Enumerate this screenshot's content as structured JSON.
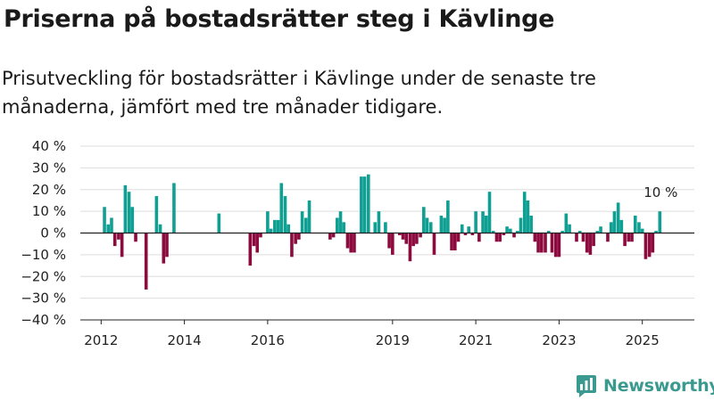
{
  "title": "Priserna på bostadsrätter steg i Kävlinge",
  "subtitle": "Prisutveckling för bostadsrätter i Kävlinge under de senaste tre månaderna, jämfört med tre månader tidigare.",
  "brand": "Newsworthy",
  "colors": {
    "positive": "#0fa093",
    "negative": "#8c0a3e",
    "grid": "#dddddd",
    "zero_line": "#222222",
    "brand": "#3a9a8f"
  },
  "chart_data": {
    "type": "bar",
    "ylim": [
      -40,
      40
    ],
    "yticks": [
      -40,
      -30,
      -20,
      -10,
      0,
      10,
      20,
      30,
      40
    ],
    "ytick_labels": [
      "−40 %",
      "−30 %",
      "−20 %",
      "−10 %",
      "0 %",
      "10 %",
      "20 %",
      "30 %",
      "40 %"
    ],
    "xticks": [
      2012,
      2014,
      2016,
      2019,
      2021,
      2023,
      2025
    ],
    "xtick_labels": [
      "2012",
      "2014",
      "2016",
      "2019",
      "2021",
      "2023",
      "2025"
    ],
    "xlim": [
      2011.5,
      2026.25
    ],
    "grid": true,
    "annotation": {
      "text": "10 %",
      "x": 2025.42,
      "y": 10
    },
    "points": [
      {
        "x": 2012.08,
        "y": 12
      },
      {
        "x": 2012.17,
        "y": 4
      },
      {
        "x": 2012.25,
        "y": 7
      },
      {
        "x": 2012.33,
        "y": -6
      },
      {
        "x": 2012.42,
        "y": -3
      },
      {
        "x": 2012.5,
        "y": -11
      },
      {
        "x": 2012.58,
        "y": 22
      },
      {
        "x": 2012.67,
        "y": 19
      },
      {
        "x": 2012.75,
        "y": 12
      },
      {
        "x": 2012.83,
        "y": -4
      },
      {
        "x": 2013.08,
        "y": -26
      },
      {
        "x": 2013.33,
        "y": 17
      },
      {
        "x": 2013.42,
        "y": 4
      },
      {
        "x": 2013.5,
        "y": -14
      },
      {
        "x": 2013.58,
        "y": -11
      },
      {
        "x": 2013.75,
        "y": 23
      },
      {
        "x": 2014.83,
        "y": 9
      },
      {
        "x": 2015.58,
        "y": -15
      },
      {
        "x": 2015.67,
        "y": -6
      },
      {
        "x": 2015.75,
        "y": -9
      },
      {
        "x": 2015.83,
        "y": -2
      },
      {
        "x": 2016.0,
        "y": 10
      },
      {
        "x": 2016.08,
        "y": 2
      },
      {
        "x": 2016.17,
        "y": 6
      },
      {
        "x": 2016.25,
        "y": 6
      },
      {
        "x": 2016.33,
        "y": 23
      },
      {
        "x": 2016.42,
        "y": 17
      },
      {
        "x": 2016.5,
        "y": 4
      },
      {
        "x": 2016.58,
        "y": -11
      },
      {
        "x": 2016.67,
        "y": -5
      },
      {
        "x": 2016.75,
        "y": -3
      },
      {
        "x": 2016.83,
        "y": 10
      },
      {
        "x": 2016.92,
        "y": 7
      },
      {
        "x": 2017.0,
        "y": 15
      },
      {
        "x": 2017.5,
        "y": -3
      },
      {
        "x": 2017.58,
        "y": -2
      },
      {
        "x": 2017.67,
        "y": 7
      },
      {
        "x": 2017.75,
        "y": 10
      },
      {
        "x": 2017.83,
        "y": 5
      },
      {
        "x": 2017.92,
        "y": -7
      },
      {
        "x": 2018.0,
        "y": -9
      },
      {
        "x": 2018.08,
        "y": -9
      },
      {
        "x": 2018.25,
        "y": 26
      },
      {
        "x": 2018.33,
        "y": 26
      },
      {
        "x": 2018.42,
        "y": 27
      },
      {
        "x": 2018.58,
        "y": 5
      },
      {
        "x": 2018.67,
        "y": 10
      },
      {
        "x": 2018.83,
        "y": 5
      },
      {
        "x": 2018.92,
        "y": -7
      },
      {
        "x": 2019.0,
        "y": -10
      },
      {
        "x": 2019.17,
        "y": -1
      },
      {
        "x": 2019.25,
        "y": -3
      },
      {
        "x": 2019.33,
        "y": -5
      },
      {
        "x": 2019.42,
        "y": -13
      },
      {
        "x": 2019.5,
        "y": -6
      },
      {
        "x": 2019.58,
        "y": -5
      },
      {
        "x": 2019.67,
        "y": -2
      },
      {
        "x": 2019.75,
        "y": 12
      },
      {
        "x": 2019.83,
        "y": 7
      },
      {
        "x": 2019.92,
        "y": 5
      },
      {
        "x": 2020.0,
        "y": -10
      },
      {
        "x": 2020.17,
        "y": 8
      },
      {
        "x": 2020.25,
        "y": 7
      },
      {
        "x": 2020.33,
        "y": 15
      },
      {
        "x": 2020.42,
        "y": -8
      },
      {
        "x": 2020.5,
        "y": -8
      },
      {
        "x": 2020.58,
        "y": -4
      },
      {
        "x": 2020.67,
        "y": 4
      },
      {
        "x": 2020.75,
        "y": -1
      },
      {
        "x": 2020.83,
        "y": 3
      },
      {
        "x": 2020.92,
        "y": -1
      },
      {
        "x": 2021.0,
        "y": 10
      },
      {
        "x": 2021.08,
        "y": -4
      },
      {
        "x": 2021.17,
        "y": 10
      },
      {
        "x": 2021.25,
        "y": 8
      },
      {
        "x": 2021.33,
        "y": 19
      },
      {
        "x": 2021.42,
        "y": 1
      },
      {
        "x": 2021.5,
        "y": -4
      },
      {
        "x": 2021.58,
        "y": -4
      },
      {
        "x": 2021.67,
        "y": -1
      },
      {
        "x": 2021.75,
        "y": 3
      },
      {
        "x": 2021.83,
        "y": 2
      },
      {
        "x": 2021.92,
        "y": -2
      },
      {
        "x": 2022.0,
        "y": 1
      },
      {
        "x": 2022.08,
        "y": 7
      },
      {
        "x": 2022.17,
        "y": 19
      },
      {
        "x": 2022.25,
        "y": 15
      },
      {
        "x": 2022.33,
        "y": 8
      },
      {
        "x": 2022.42,
        "y": -4
      },
      {
        "x": 2022.5,
        "y": -9
      },
      {
        "x": 2022.58,
        "y": -9
      },
      {
        "x": 2022.67,
        "y": -9
      },
      {
        "x": 2022.75,
        "y": 1
      },
      {
        "x": 2022.83,
        "y": -9
      },
      {
        "x": 2022.92,
        "y": -11
      },
      {
        "x": 2023.0,
        "y": -11
      },
      {
        "x": 2023.08,
        "y": 1
      },
      {
        "x": 2023.17,
        "y": 9
      },
      {
        "x": 2023.25,
        "y": 4
      },
      {
        "x": 2023.42,
        "y": -4
      },
      {
        "x": 2023.5,
        "y": 1
      },
      {
        "x": 2023.58,
        "y": -4
      },
      {
        "x": 2023.67,
        "y": -9
      },
      {
        "x": 2023.75,
        "y": -10
      },
      {
        "x": 2023.83,
        "y": -6
      },
      {
        "x": 2023.92,
        "y": 1
      },
      {
        "x": 2024.0,
        "y": 3
      },
      {
        "x": 2024.17,
        "y": -4
      },
      {
        "x": 2024.25,
        "y": 5
      },
      {
        "x": 2024.33,
        "y": 10
      },
      {
        "x": 2024.42,
        "y": 14
      },
      {
        "x": 2024.5,
        "y": 6
      },
      {
        "x": 2024.58,
        "y": -6
      },
      {
        "x": 2024.67,
        "y": -4
      },
      {
        "x": 2024.75,
        "y": -4
      },
      {
        "x": 2024.83,
        "y": 8
      },
      {
        "x": 2024.92,
        "y": 5
      },
      {
        "x": 2025.0,
        "y": 2
      },
      {
        "x": 2025.08,
        "y": -12
      },
      {
        "x": 2025.17,
        "y": -11
      },
      {
        "x": 2025.25,
        "y": -9
      },
      {
        "x": 2025.33,
        "y": 1
      },
      {
        "x": 2025.42,
        "y": 10
      }
    ]
  }
}
